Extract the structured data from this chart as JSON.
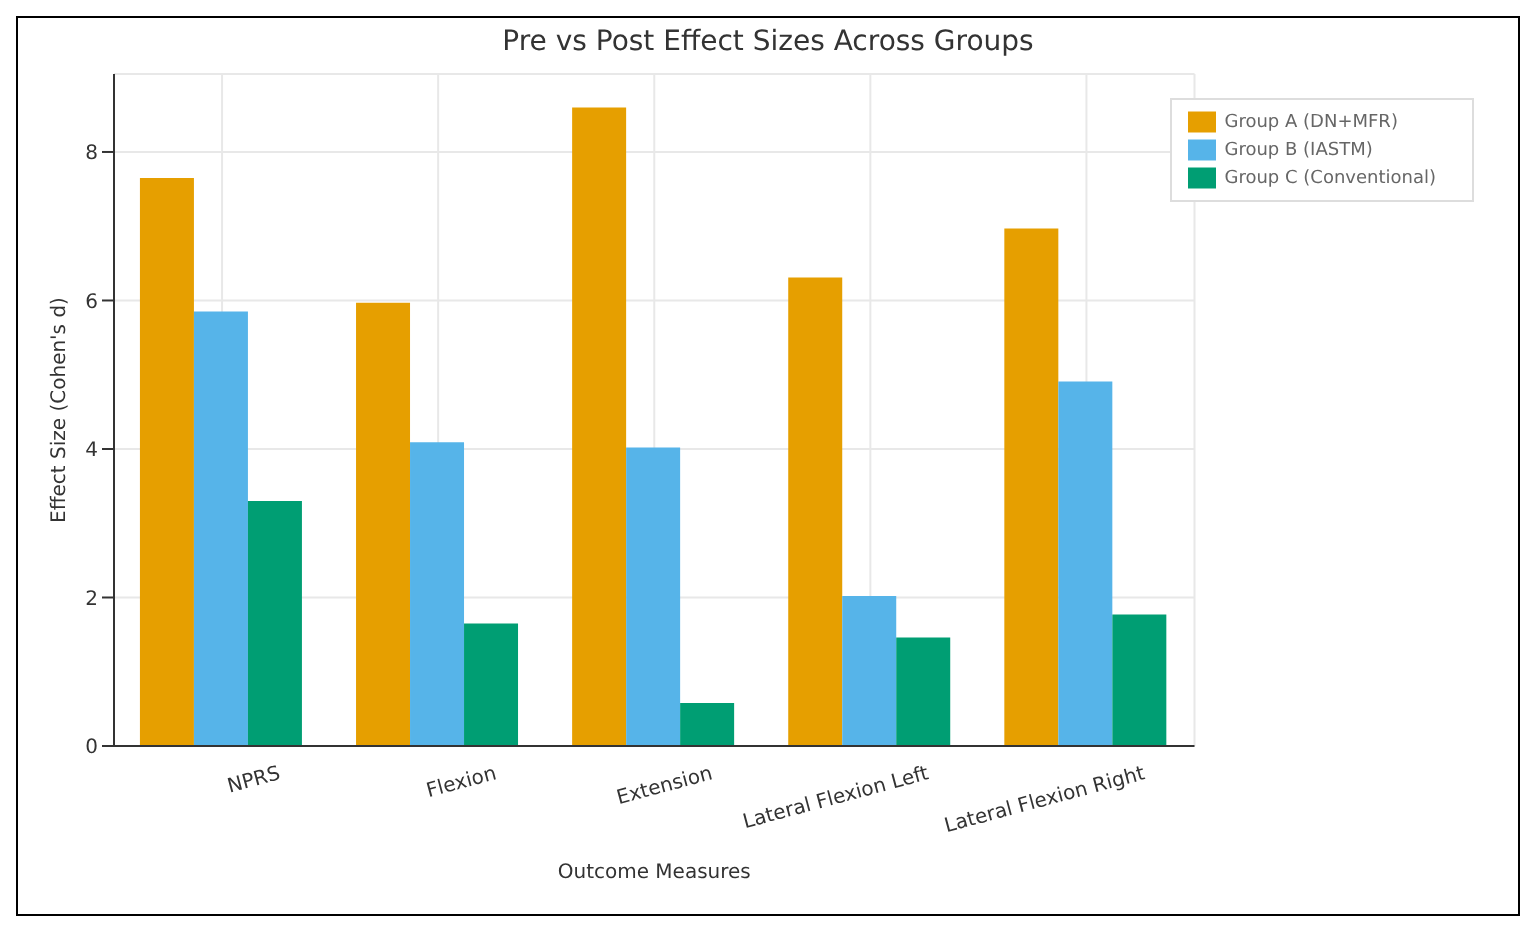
{
  "chart_data": {
    "type": "bar",
    "title": "Pre vs Post Effect Sizes Across Groups",
    "xlabel": "Outcome Measures",
    "ylabel": "Effect Size (Cohen's d)",
    "categories": [
      "NPRS",
      "Flexion",
      "Extension",
      "Lateral Flexion Left",
      "Lateral Flexion Right"
    ],
    "series": [
      {
        "name": "Group A (DN+MFR)",
        "color": "#e69f00",
        "values": [
          7.65,
          5.97,
          8.6,
          6.31,
          6.97
        ]
      },
      {
        "name": "Group B (IASTM)",
        "color": "#56b4e9",
        "values": [
          5.85,
          4.09,
          4.02,
          2.02,
          4.91
        ]
      },
      {
        "name": "Group C (Conventional)",
        "color": "#009e73",
        "values": [
          3.3,
          1.65,
          0.58,
          1.46,
          1.77
        ]
      }
    ],
    "ylim": [
      0,
      9.05
    ],
    "yticks": [
      0,
      2,
      4,
      6,
      8
    ],
    "grid": true,
    "legend": "top right"
  }
}
